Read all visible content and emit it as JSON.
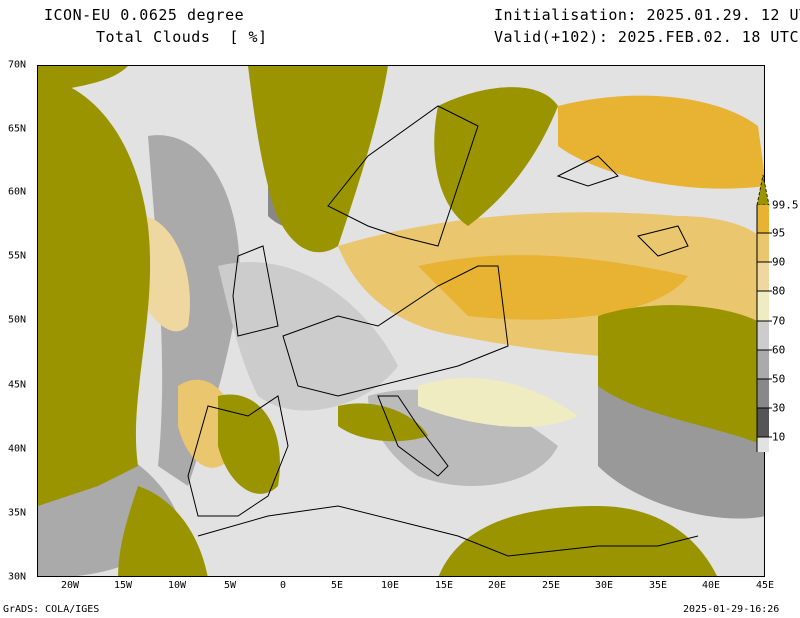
{
  "header": {
    "model": "ICON-EU 0.0625 degree",
    "variable": "Total Clouds  [ %]",
    "init": "Initialisation: 2025.01.29. 12 UTC",
    "valid": "Valid(+102): 2025.FEB.02. 18 UTC"
  },
  "axes": {
    "x_ticks": [
      "20W",
      "15W",
      "10W",
      "5W",
      "0",
      "5E",
      "10E",
      "15E",
      "20E",
      "25E",
      "30E",
      "35E",
      "40E",
      "45E"
    ],
    "y_ticks": [
      "70N",
      "65N",
      "60N",
      "55N",
      "50N",
      "45N",
      "40N",
      "35N",
      "30N"
    ]
  },
  "legend": {
    "labels": [
      "99.5",
      "95",
      "90",
      "80",
      "70",
      "60",
      "50",
      "30",
      "10"
    ],
    "colors": [
      "#9a9400",
      "#e8b232",
      "#eac66e",
      "#efd8a0",
      "#eeecc0",
      "#cccccc",
      "#aaaaaa",
      "#888888",
      "#555555",
      "#e2e2e2"
    ]
  },
  "footer": {
    "left": "GrADS: COLA/IGES",
    "right": "2025-01-29-16:26"
  },
  "colors": {
    "olive": "#9a9400",
    "orange": "#e8b232",
    "background": "#e2e2e2"
  }
}
